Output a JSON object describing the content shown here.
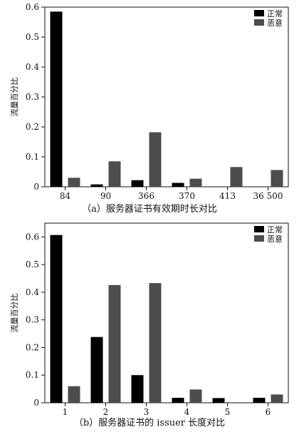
{
  "chart_data": [
    {
      "type": "bar",
      "caption": "（a）服务器证书有效期时长对比",
      "ylabel": "流量百分比",
      "categories": [
        "84",
        "90",
        "366",
        "370",
        "413",
        "36 500"
      ],
      "yticks": [
        "0",
        "0.1",
        "0.2",
        "0.3",
        "0.4",
        "0.5",
        "0.6"
      ],
      "ylim": [
        0,
        0.6
      ],
      "legend_position": "top-right",
      "series": [
        {
          "name": "正常",
          "color": "#000000",
          "values": [
            0.585,
            0.008,
            0.022,
            0.013,
            0,
            0
          ]
        },
        {
          "name": "恶意",
          "color": "#4d4d4d",
          "values": [
            0.03,
            0.085,
            0.182,
            0.027,
            0.066,
            0.056
          ]
        }
      ]
    },
    {
      "type": "bar",
      "caption": "（b）服务器证书的 issuer 长度对比",
      "ylabel": "流量百分比",
      "categories": [
        "1",
        "2",
        "3",
        "4",
        "5",
        "6"
      ],
      "yticks": [
        "0",
        "0.1",
        "0.2",
        "0.3",
        "0.4",
        "0.5",
        "0.6"
      ],
      "ylim": [
        0,
        0.65
      ],
      "legend_position": "top-right",
      "series": [
        {
          "name": "正常",
          "color": "#000000",
          "values": [
            0.607,
            0.238,
            0.1,
            0.018,
            0.017,
            0.018
          ]
        },
        {
          "name": "恶意",
          "color": "#4d4d4d",
          "values": [
            0.06,
            0.426,
            0.433,
            0.048,
            0,
            0.03
          ]
        }
      ]
    }
  ]
}
